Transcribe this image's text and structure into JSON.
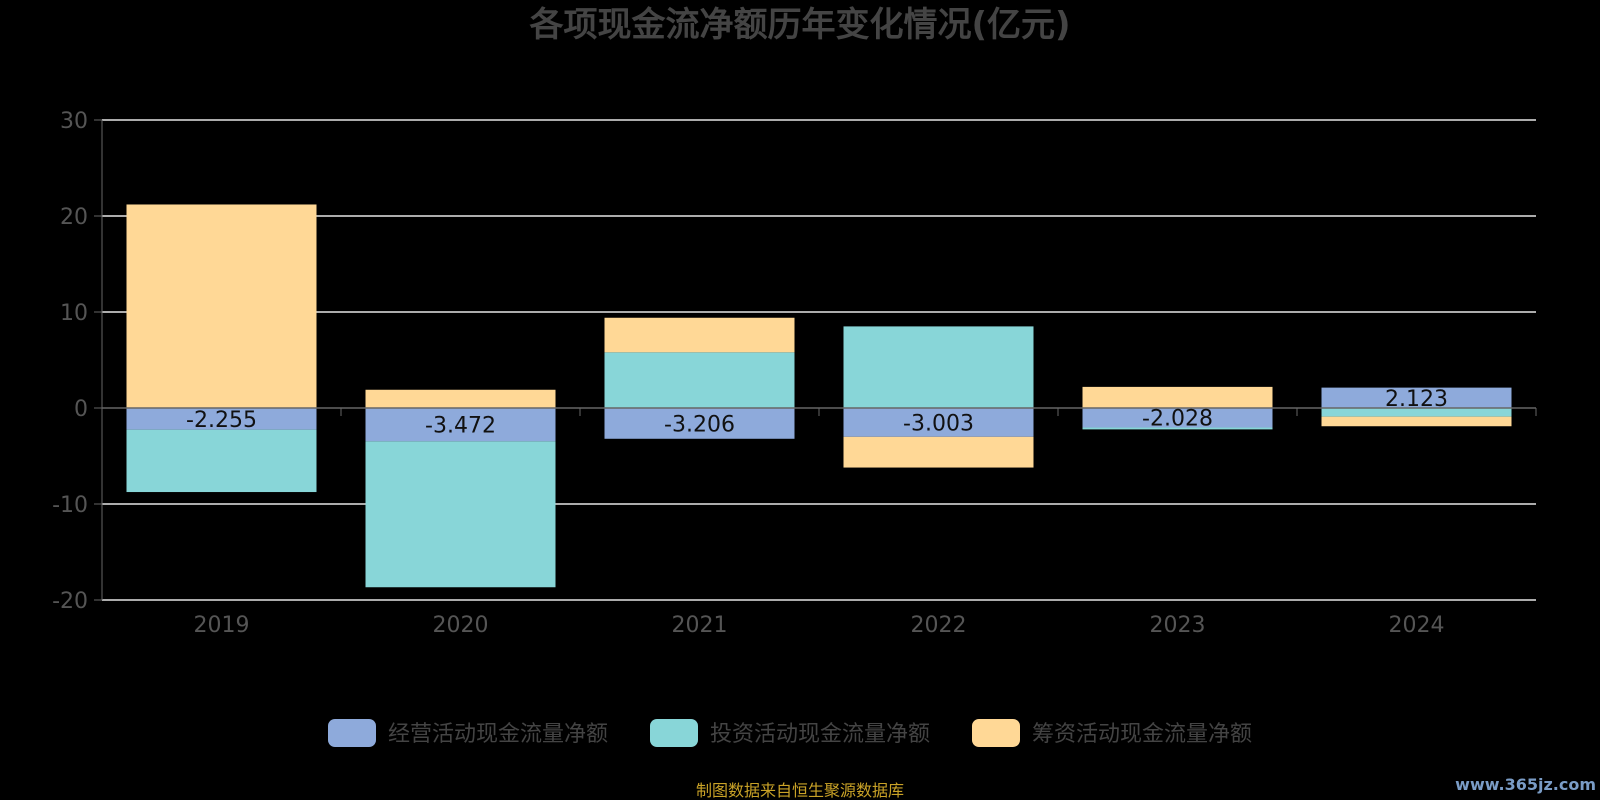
{
  "chart_data": {
    "type": "bar",
    "stacked": true,
    "title": "各项现金流净额历年变化情况(亿元)",
    "categories": [
      "2019",
      "2020",
      "2021",
      "2022",
      "2023",
      "2024"
    ],
    "ylim": [
      -20,
      30
    ],
    "yticks": [
      30,
      20,
      10,
      0,
      -10,
      -20
    ],
    "grid": true,
    "legend_position": "bottom",
    "series": [
      {
        "name": "经营活动现金流量净额",
        "color": "#8eaadb",
        "values": [
          -2.255,
          -3.472,
          -3.206,
          -3.003,
          -2.028,
          2.123
        ]
      },
      {
        "name": "投资活动现金流量净额",
        "color": "#88d6d8",
        "values": [
          -6.5,
          -15.2,
          5.8,
          8.5,
          -0.2,
          -0.9
        ]
      },
      {
        "name": "筹资活动现金流量净额",
        "color": "#ffd896",
        "values": [
          21.2,
          1.9,
          3.6,
          -3.2,
          2.2,
          -1.0
        ]
      }
    ],
    "data_labels": [
      "-2.255",
      "-3.472",
      "-3.206",
      "-3.003",
      "-2.028",
      "2.123"
    ]
  },
  "source_note": "制图数据来自恒生聚源数据库",
  "watermark": "www.365jz.com"
}
